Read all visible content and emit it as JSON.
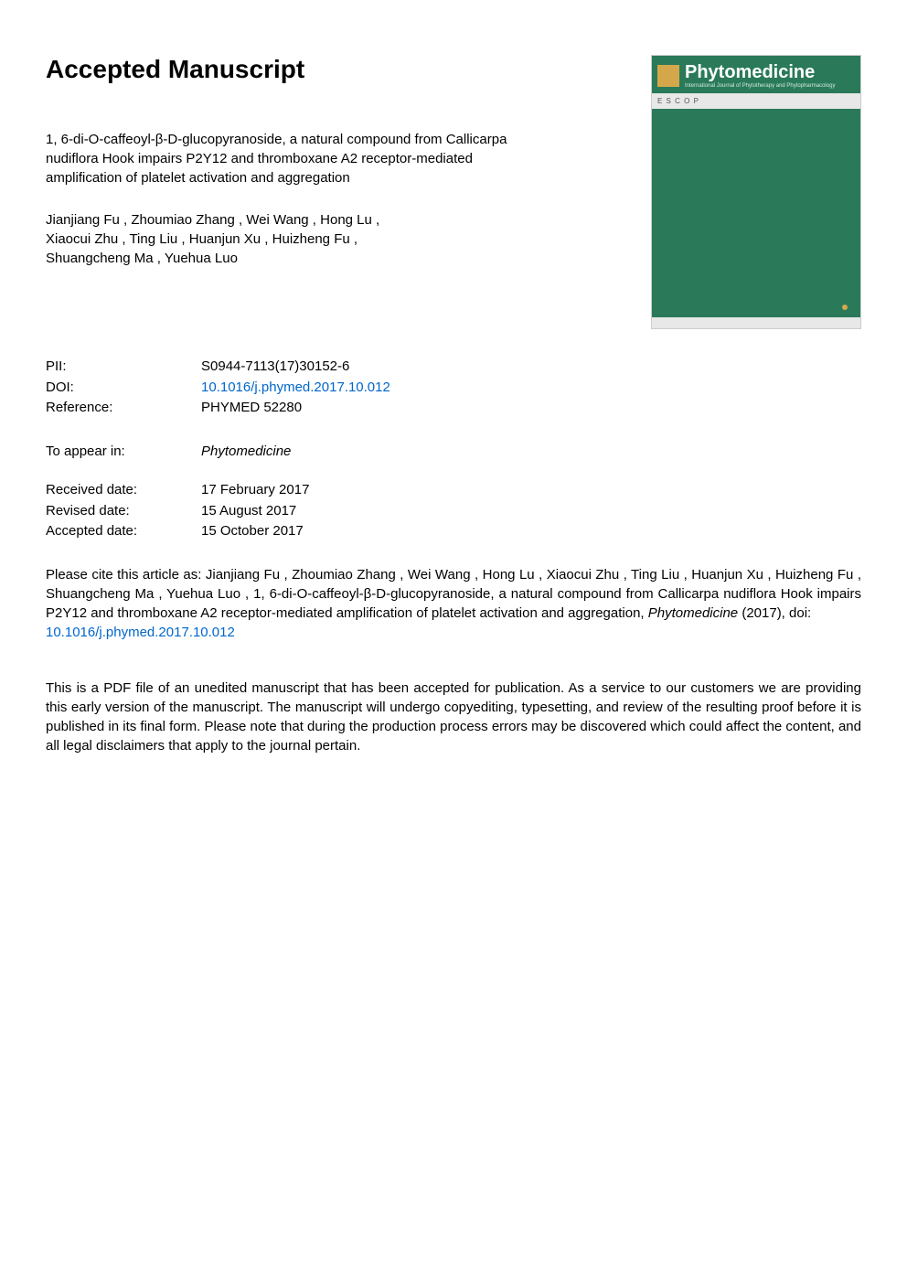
{
  "heading": "Accepted Manuscript",
  "article": {
    "title": "1, 6-di-O-caffeoyl-β-D-glucopyranoside, a natural compound from Callicarpa nudiflora Hook impairs P2Y12 and thromboxane A2 receptor-mediated amplification of platelet activation and aggregation",
    "authors_line1": "Jianjiang Fu ,  Zhoumiao Zhang ,  Wei Wang ,  Hong Lu ,",
    "authors_line2": "Xiaocui Zhu ,  Ting Liu ,  Huanjun Xu ,  Huizheng Fu ,",
    "authors_line3": "Shuangcheng Ma ,  Yuehua Luo"
  },
  "metadata": {
    "pii_label": "PII:",
    "pii_value": "S0944-7113(17)30152-6",
    "doi_label": "DOI:",
    "doi_value": "10.1016/j.phymed.2017.10.012",
    "reference_label": "Reference:",
    "reference_value": "PHYMED 52280",
    "appear_label": "To appear in:",
    "appear_value": "Phytomedicine",
    "received_label": "Received date:",
    "received_value": "17 February 2017",
    "revised_label": "Revised date:",
    "revised_value": "15 August 2017",
    "accepted_label": "Accepted date:",
    "accepted_value": "15 October 2017"
  },
  "citation": {
    "prefix": "Please cite this article as:  Jianjiang Fu ,  Zhoumiao Zhang ,  Wei Wang ,  Hong Lu ,  Xiaocui Zhu ,  Ting Liu ,  Huanjun Xu ,  Huizheng Fu ,  Shuangcheng Ma ,  Yuehua Luo ,  1, 6-di-O-caffeoyl-β-D-glucopyranoside, a natural compound from Callicarpa nudiflora Hook impairs P2Y12 and thromboxane A2 receptor-mediated amplification of platelet activation and aggregation, ",
    "journal": "Phytomedicine",
    "year_doi_label": " (2017), doi: ",
    "doi_link": "10.1016/j.phymed.2017.10.012"
  },
  "disclaimer": "This is a PDF file of an unedited manuscript that has been accepted for publication. As a service to our customers we are providing this early version of the manuscript. The manuscript will undergo copyediting, typesetting, and review of the resulting proof before it is published in its final form. Please note that during the production process errors may be discovered which could affect the content, and all legal disclaimers that apply to the journal pertain.",
  "cover": {
    "journal_title": "Phytomedicine",
    "subtitle": "International Journal of Phytotherapy and Phytopharmacology",
    "escop": "E S C O P",
    "colors": {
      "cover_bg": "#2a7a5a",
      "cover_accent": "#d4a84a",
      "cover_light": "#e8e8e8"
    }
  },
  "styling": {
    "link_color": "#0066cc",
    "text_color": "#000000",
    "background": "#ffffff",
    "heading_fontsize": 28,
    "body_fontsize": 15
  }
}
